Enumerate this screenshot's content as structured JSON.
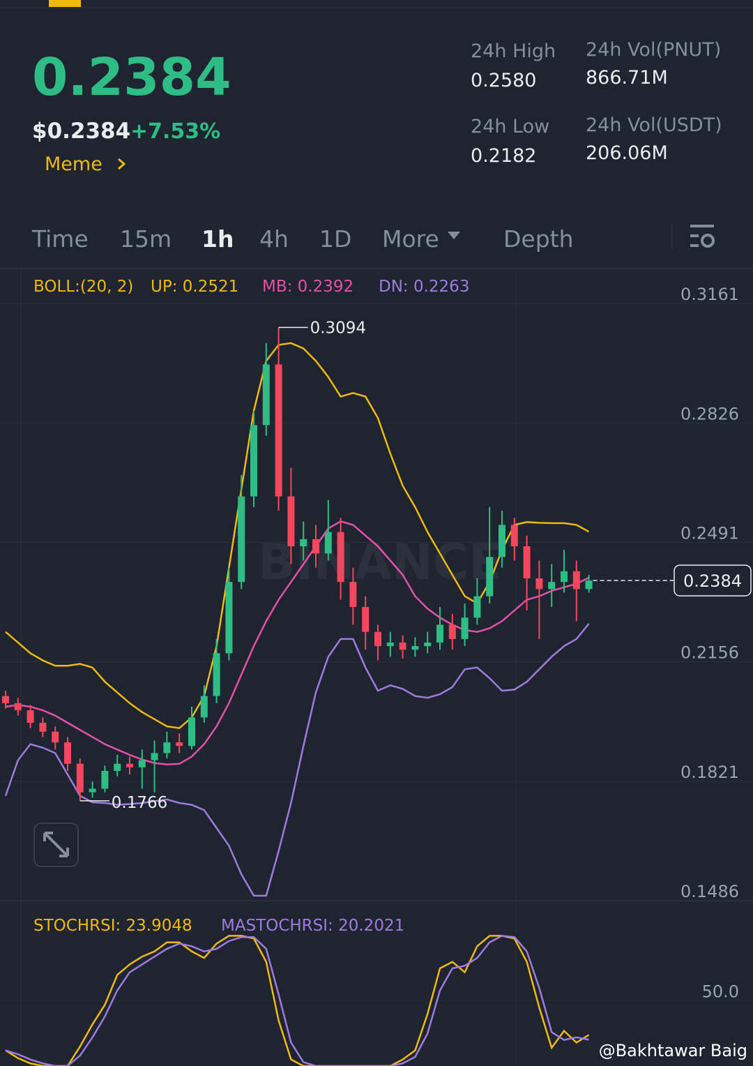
{
  "header": {
    "price": "0.2384",
    "price_usd": "$0.2384",
    "change": "+7.53%",
    "tag": "Meme",
    "stats": [
      {
        "label": "24h High",
        "value": "0.2580"
      },
      {
        "label": "24h Vol(PNUT)",
        "value": "866.71M"
      },
      {
        "label": "24h Low",
        "value": "0.2182"
      },
      {
        "label": "24h Vol(USDT)",
        "value": "206.06M"
      }
    ]
  },
  "tabs": [
    "Time",
    "15m",
    "1h",
    "4h",
    "1D",
    "More",
    "Depth"
  ],
  "watermark": "BINANCE",
  "credit": "@Bakhtawar Baig",
  "chart_data": [
    {
      "type": "candlestick",
      "indicator_label": "BOLL:(20, 2)",
      "legend_labels": [
        "UP: 0.2521",
        "MB: 0.2392",
        "DN: 0.2263"
      ],
      "up_color": "#2ebd85",
      "down_color": "#f6465d",
      "ylim": [
        0.1486,
        0.3259
      ],
      "yticks": [
        0.3161,
        0.2826,
        0.2491,
        0.2156,
        0.1821,
        0.1486
      ],
      "grid": true,
      "open": [
        0.206,
        0.204,
        0.202,
        0.1985,
        0.196,
        0.193,
        0.187,
        0.179,
        0.18,
        0.185,
        0.187,
        0.186,
        0.188,
        0.19,
        0.193,
        0.192,
        0.2,
        0.206,
        0.218,
        0.238,
        0.262,
        0.282,
        0.299,
        0.262,
        0.248,
        0.25,
        0.246,
        0.252,
        0.238,
        0.231,
        0.224,
        0.22,
        0.221,
        0.219,
        0.22,
        0.221,
        0.226,
        0.222,
        0.228,
        0.234,
        0.245,
        0.254,
        0.248,
        0.239,
        0.236,
        0.238,
        0.241,
        0.236
      ],
      "high": [
        0.2075,
        0.2055,
        0.2035,
        0.2,
        0.1975,
        0.1945,
        0.1885,
        0.182,
        0.1865,
        0.1895,
        0.189,
        0.191,
        0.1935,
        0.196,
        0.1955,
        0.203,
        0.209,
        0.222,
        0.242,
        0.268,
        0.286,
        0.305,
        0.3094,
        0.27,
        0.255,
        0.254,
        0.261,
        0.256,
        0.242,
        0.234,
        0.226,
        0.224,
        0.223,
        0.2225,
        0.224,
        0.231,
        0.229,
        0.232,
        0.239,
        0.259,
        0.258,
        0.256,
        0.251,
        0.244,
        0.243,
        0.247,
        0.244,
        0.24
      ],
      "low": [
        0.2025,
        0.2005,
        0.197,
        0.1945,
        0.191,
        0.185,
        0.1766,
        0.1775,
        0.179,
        0.1835,
        0.184,
        0.18,
        0.179,
        0.1885,
        0.19,
        0.191,
        0.1985,
        0.204,
        0.216,
        0.236,
        0.259,
        0.279,
        0.258,
        0.243,
        0.244,
        0.242,
        0.244,
        0.233,
        0.226,
        0.219,
        0.216,
        0.217,
        0.2165,
        0.217,
        0.218,
        0.219,
        0.219,
        0.22,
        0.226,
        0.232,
        0.242,
        0.244,
        0.23,
        0.222,
        0.231,
        0.235,
        0.227,
        0.235
      ],
      "close": [
        0.204,
        0.202,
        0.1985,
        0.196,
        0.193,
        0.187,
        0.179,
        0.18,
        0.185,
        0.187,
        0.186,
        0.188,
        0.19,
        0.193,
        0.192,
        0.2,
        0.206,
        0.218,
        0.238,
        0.262,
        0.282,
        0.299,
        0.262,
        0.248,
        0.25,
        0.246,
        0.252,
        0.238,
        0.231,
        0.224,
        0.22,
        0.221,
        0.219,
        0.22,
        0.221,
        0.226,
        0.222,
        0.228,
        0.234,
        0.245,
        0.254,
        0.248,
        0.239,
        0.236,
        0.238,
        0.241,
        0.236,
        0.2384
      ],
      "series": [
        {
          "name": "UP",
          "color": "#f0b90b",
          "values": [
            0.224,
            0.221,
            0.218,
            0.216,
            0.2145,
            0.2145,
            0.215,
            0.214,
            0.21,
            0.207,
            0.204,
            0.2015,
            0.1995,
            0.1975,
            0.197,
            0.2,
            0.206,
            0.22,
            0.242,
            0.264,
            0.286,
            0.3,
            0.3045,
            0.305,
            0.3035,
            0.3,
            0.2955,
            0.29,
            0.291,
            0.29,
            0.284,
            0.274,
            0.265,
            0.259,
            0.252,
            0.246,
            0.24,
            0.234,
            0.232,
            0.238,
            0.247,
            0.254,
            0.2548,
            0.2546,
            0.2545,
            0.2545,
            0.254,
            0.2521
          ]
        },
        {
          "name": "MB",
          "color": "#e84fa6",
          "values": [
            0.203,
            0.2035,
            0.203,
            0.202,
            0.2005,
            0.1985,
            0.1965,
            0.1945,
            0.1925,
            0.191,
            0.1895,
            0.1882,
            0.1872,
            0.1868,
            0.187,
            0.189,
            0.1925,
            0.1975,
            0.204,
            0.212,
            0.22,
            0.227,
            0.233,
            0.238,
            0.243,
            0.248,
            0.253,
            0.255,
            0.254,
            0.251,
            0.248,
            0.244,
            0.24,
            0.234,
            0.2305,
            0.228,
            0.226,
            0.2245,
            0.224,
            0.225,
            0.227,
            0.23,
            0.233,
            0.234,
            0.2355,
            0.2365,
            0.2375,
            0.2392
          ]
        },
        {
          "name": "DN",
          "color": "#9f7be0",
          "values": [
            0.178,
            0.188,
            0.1925,
            0.1915,
            0.19,
            0.184,
            0.178,
            0.1762,
            0.176,
            0.1755,
            0.1757,
            0.176,
            0.1765,
            0.177,
            0.176,
            0.1755,
            0.174,
            0.169,
            0.164,
            0.156,
            0.15,
            0.15,
            0.1625,
            0.176,
            0.192,
            0.207,
            0.217,
            0.222,
            0.222,
            0.214,
            0.2075,
            0.209,
            0.208,
            0.206,
            0.2055,
            0.2065,
            0.2085,
            0.2135,
            0.214,
            0.211,
            0.2075,
            0.2078,
            0.21,
            0.2135,
            0.217,
            0.22,
            0.222,
            0.2263
          ]
        }
      ]
    },
    {
      "type": "line",
      "legend_labels": [
        "STOCHRSI: 23.9048",
        "MASTOCHRSI: 20.2021"
      ],
      "ylim": [
        0,
        127
      ],
      "yticks": [
        {
          "value": 50,
          "label": "50.0"
        }
      ],
      "series": [
        {
          "name": "STOCHRSI",
          "color": "#f0b90b",
          "values": [
            12,
            6,
            2,
            0,
            0,
            0,
            15,
            32,
            47,
            70,
            78,
            84,
            88,
            95,
            95,
            88,
            83,
            94,
            100,
            100,
            98,
            80,
            35,
            5,
            0,
            0,
            0,
            0,
            0,
            0,
            0,
            0,
            5,
            12,
            40,
            75,
            80,
            72,
            92,
            100,
            100,
            98,
            80,
            45,
            14,
            27,
            18,
            23.9048
          ]
        },
        {
          "name": "MASTOCHRSI",
          "color": "#9f7be0",
          "values": [
            12,
            9,
            5,
            2,
            0,
            0,
            8,
            22,
            38,
            58,
            72,
            78,
            84,
            90,
            94,
            92,
            88,
            90,
            96,
            99,
            99,
            90,
            55,
            18,
            3,
            0,
            0,
            0,
            0,
            0,
            0,
            0,
            2,
            7,
            25,
            58,
            75,
            77,
            83,
            95,
            100,
            99,
            88,
            60,
            26,
            20,
            22,
            20.2021
          ]
        }
      ]
    }
  ]
}
